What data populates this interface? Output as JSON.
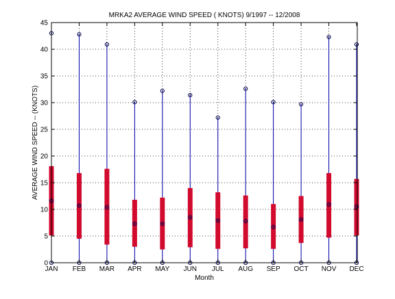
{
  "chart_data": {
    "type": "box",
    "title": "MRKA2  AVERAGE WIND SPEED ( KNOTS) 9/1997 -- 12/2008",
    "xlabel": "Month",
    "ylabel": "AVERAGE WIND SPEED -- (KNOTS)",
    "ylim": [
      0,
      45
    ],
    "yticks": [
      "0",
      "5",
      "10",
      "15",
      "20",
      "25",
      "30",
      "35",
      "40",
      "45"
    ],
    "grid": true,
    "categories": [
      "JAN",
      "FEB",
      "MAR",
      "APR",
      "MAY",
      "JUN",
      "JUL",
      "AUG",
      "SEP",
      "OCT",
      "NOV",
      "DEC"
    ],
    "min": [
      0,
      0,
      0,
      0,
      0,
      0,
      0,
      0,
      0,
      0,
      0,
      0
    ],
    "q1": [
      5.1,
      4.5,
      3.4,
      3.0,
      2.5,
      2.9,
      2.6,
      2.7,
      2.6,
      3.7,
      4.7,
      5.1
    ],
    "median": [
      11.6,
      10.7,
      10.4,
      7.3,
      7.3,
      8.5,
      7.9,
      7.8,
      6.7,
      8.1,
      10.9,
      10.5
    ],
    "q3": [
      18.1,
      16.8,
      17.6,
      11.8,
      12.2,
      14.0,
      13.2,
      12.6,
      11.0,
      12.5,
      16.8,
      15.7
    ],
    "max": [
      43.0,
      42.8,
      40.9,
      30.1,
      32.2,
      31.4,
      27.2,
      32.6,
      30.1,
      29.7,
      42.3,
      40.9
    ],
    "colors": {
      "whisker": "#0000aa",
      "box": "#d10a2e",
      "marker": "#00004d",
      "grid": "#000000"
    }
  }
}
